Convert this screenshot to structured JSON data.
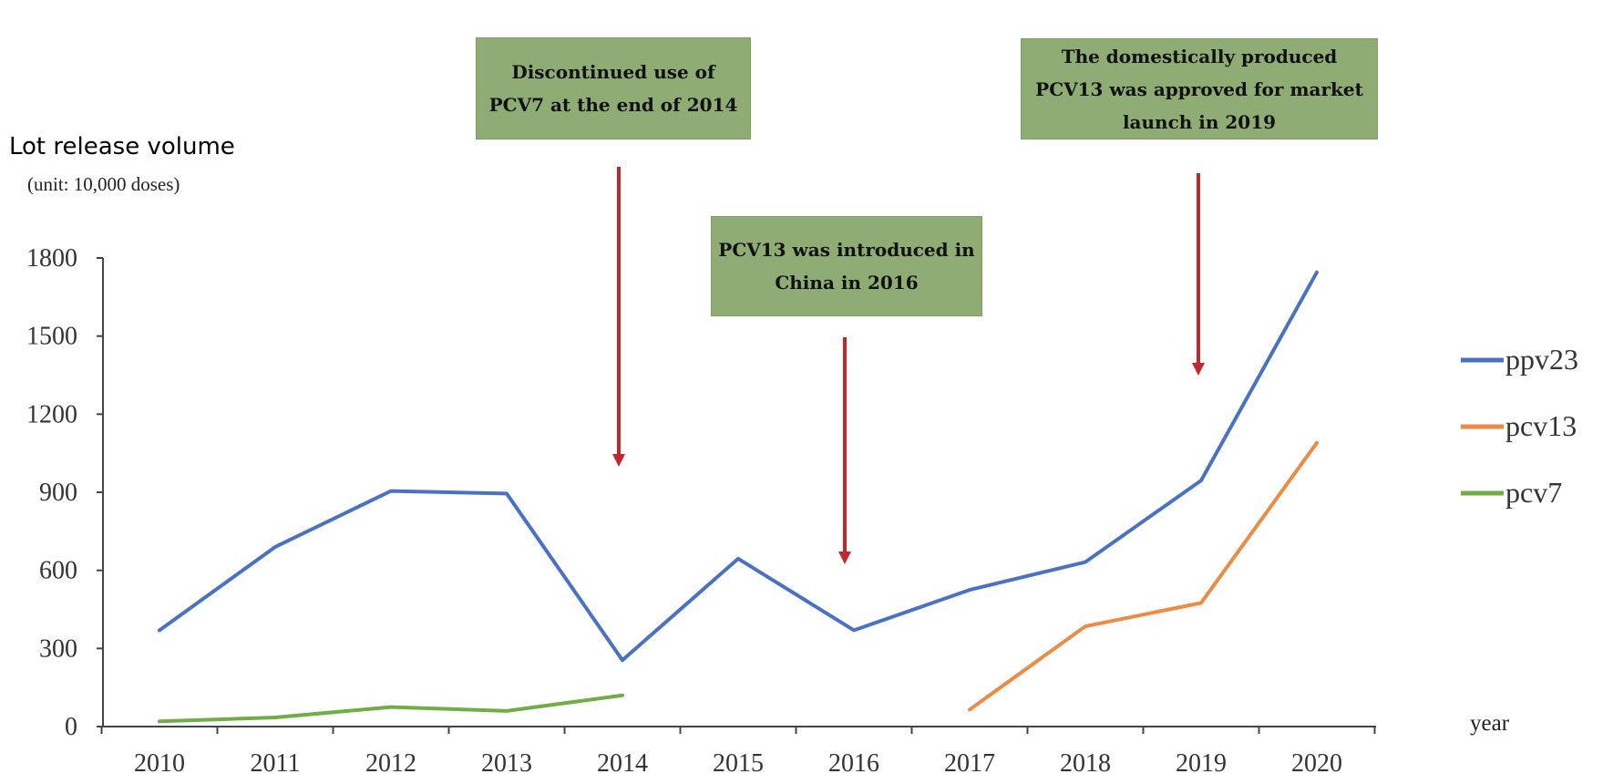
{
  "chart_data": {
    "type": "line",
    "ylabel": "Lot release volume",
    "yunit": "(unit: 10,000 doses)",
    "xlabel": "year",
    "ylim": [
      0,
      1800
    ],
    "yticks": [
      0,
      300,
      600,
      900,
      1200,
      1500,
      1800
    ],
    "categories": [
      "2010",
      "2011",
      "2012",
      "2013",
      "2014",
      "2015",
      "2016",
      "2017",
      "2018",
      "2019",
      "2020"
    ],
    "series": [
      {
        "name": "ppv23",
        "color": "#4a72c4",
        "values": [
          370,
          690,
          905,
          895,
          255,
          645,
          370,
          525,
          632,
          945,
          1745
        ]
      },
      {
        "name": "pcv13",
        "color": "#ee8a43",
        "values": [
          null,
          null,
          null,
          null,
          null,
          null,
          null,
          65,
          385,
          475,
          1090
        ]
      },
      {
        "name": "pcv7",
        "color": "#70ad47",
        "values": [
          20,
          35,
          75,
          60,
          120,
          null,
          null,
          null,
          null,
          null,
          null
        ]
      }
    ],
    "legend_position": "right",
    "annotations": [
      {
        "text": "Discontinued use of PCV7 at the end of 2014",
        "lines": [
          "Discontinued use of",
          "PCV7 at the end of 2014"
        ],
        "year": "2014",
        "arrow_color": "#c0282e"
      },
      {
        "text": "PCV13 was introduced in China in 2016",
        "lines": [
          "PCV13 was introduced in",
          "China in 2016"
        ],
        "year": "2016",
        "arrow_color": "#c0282e"
      },
      {
        "text": "The domestically produced PCV13 was approved for market launch in 2019",
        "lines": [
          "The domestically produced",
          "PCV13 was approved for market",
          "launch in 2019"
        ],
        "year": "2019",
        "arrow_color": "#c0282e"
      }
    ],
    "annotation_fill": "#8fac74",
    "grid": false
  }
}
